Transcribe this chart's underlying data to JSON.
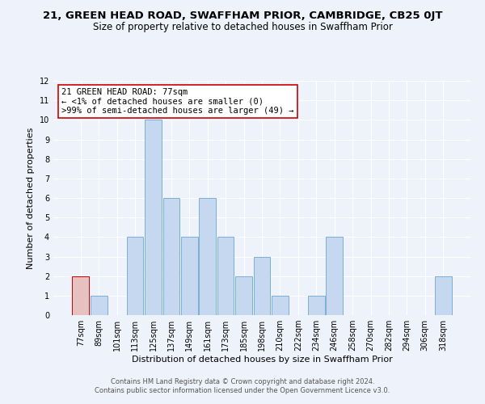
{
  "title": "21, GREEN HEAD ROAD, SWAFFHAM PRIOR, CAMBRIDGE, CB25 0JT",
  "subtitle": "Size of property relative to detached houses in Swaffham Prior",
  "xlabel": "Distribution of detached houses by size in Swaffham Prior",
  "ylabel": "Number of detached properties",
  "categories": [
    "77sqm",
    "89sqm",
    "101sqm",
    "113sqm",
    "125sqm",
    "137sqm",
    "149sqm",
    "161sqm",
    "173sqm",
    "185sqm",
    "198sqm",
    "210sqm",
    "222sqm",
    "234sqm",
    "246sqm",
    "258sqm",
    "270sqm",
    "282sqm",
    "294sqm",
    "306sqm",
    "318sqm"
  ],
  "values": [
    2,
    1,
    0,
    4,
    10,
    6,
    4,
    6,
    4,
    2,
    3,
    1,
    0,
    1,
    4,
    0,
    0,
    0,
    0,
    0,
    2
  ],
  "bar_color_default": "#c5d8f0",
  "bar_edge_color": "#7aafd4",
  "bar_color_highlight": "#e8c0c0",
  "bar_edge_highlight": "#cc0000",
  "highlight_index": 0,
  "ylim": [
    0,
    12
  ],
  "yticks": [
    0,
    1,
    2,
    3,
    4,
    5,
    6,
    7,
    8,
    9,
    10,
    11,
    12
  ],
  "annotation_title": "21 GREEN HEAD ROAD: 77sqm",
  "annotation_line1": "← <1% of detached houses are smaller (0)",
  "annotation_line2": ">99% of semi-detached houses are larger (49) →",
  "annotation_box_color": "#ffffff",
  "annotation_border_color": "#cc0000",
  "footer_line1": "Contains HM Land Registry data © Crown copyright and database right 2024.",
  "footer_line2": "Contains public sector information licensed under the Open Government Licence v3.0.",
  "background_color": "#eef2fa",
  "grid_color": "#ffffff",
  "title_fontsize": 9.5,
  "subtitle_fontsize": 8.5,
  "axis_label_fontsize": 8,
  "tick_fontsize": 7,
  "annotation_fontsize": 7.5,
  "footer_fontsize": 6
}
